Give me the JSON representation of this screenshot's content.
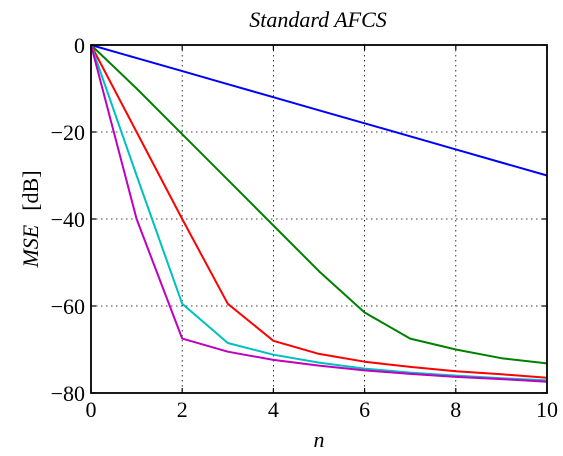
{
  "chart_data": {
    "type": "line",
    "title": "Standard AFCS",
    "xlabel": "n",
    "ylabel_symbol": "MSE",
    "ylabel_unit": "[dB]",
    "xlim": [
      0,
      10
    ],
    "ylim": [
      -80,
      0
    ],
    "xticks": [
      0,
      2,
      4,
      6,
      8,
      10
    ],
    "yticks": [
      0,
      -20,
      -40,
      -60,
      -80
    ],
    "xtick_labels": [
      "0",
      "2",
      "4",
      "6",
      "8",
      "10"
    ],
    "ytick_labels": [
      "0",
      "−20",
      "−40",
      "−60",
      "−80"
    ],
    "grid": true,
    "x": [
      0,
      1,
      2,
      3,
      4,
      5,
      6,
      7,
      8,
      9,
      10
    ],
    "series": [
      {
        "color": "#0000ff",
        "values": [
          0,
          -3,
          -6,
          -9,
          -12,
          -15,
          -18,
          -21,
          -24,
          -27,
          -30
        ]
      },
      {
        "color": "#008000",
        "values": [
          0,
          -10,
          -20.5,
          -31,
          -41.5,
          -52,
          -61.5,
          -67.5,
          -70,
          -72,
          -73.2
        ]
      },
      {
        "color": "#ff0000",
        "values": [
          0,
          -20,
          -40,
          -59.5,
          -68,
          -71,
          -72.8,
          -74,
          -75,
          -75.7,
          -76.5
        ]
      },
      {
        "color": "#00bfbf",
        "values": [
          0,
          -30,
          -59.5,
          -68.5,
          -71.2,
          -73,
          -74.4,
          -75.3,
          -76,
          -76.6,
          -77.1
        ]
      },
      {
        "color": "#bf00bf",
        "values": [
          0,
          -40,
          -67.5,
          -70.5,
          -72.4,
          -73.7,
          -74.8,
          -75.6,
          -76.3,
          -76.8,
          -77.4
        ]
      }
    ]
  }
}
